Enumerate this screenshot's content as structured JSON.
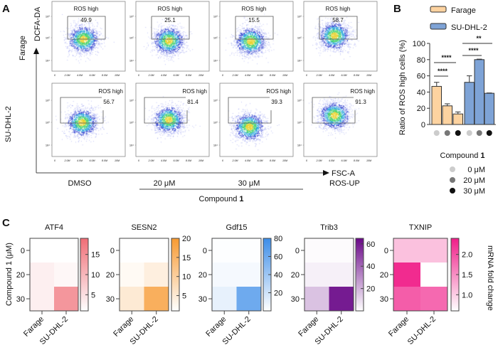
{
  "panel_labels": {
    "a": "A",
    "b": "B",
    "c": "C"
  },
  "panel_a": {
    "y_axis": "DCFA-DA",
    "x_axis": "FSC-A",
    "x_axis_sub": "ROS-UP",
    "rows": [
      "Farage",
      "SU-DHL-2"
    ],
    "columns": [
      "DMSO",
      "20 μM",
      "30 μM",
      ""
    ],
    "group_label": "Compound ",
    "group_label_bold": "1",
    "gate_label": "ROS high",
    "y_ticks": [
      "10⁶",
      "10⁵",
      "10⁴"
    ],
    "x_ticks": [
      "0",
      "2.0M",
      "4.0M",
      "6.0M",
      "8.0M",
      "10M"
    ],
    "gate_values": [
      [
        "49.9",
        "25.1",
        "15.5",
        "58.7"
      ],
      [
        "56.7",
        "81.4",
        "39.3",
        "91.3"
      ]
    ]
  },
  "chart_data": [
    {
      "type": "bar",
      "ylabel": "Ratio of ROS high cells (%)",
      "ylim": [
        0,
        100
      ],
      "yticks": [
        0,
        20,
        40,
        60,
        80,
        100
      ],
      "legend_placement": "top",
      "categories": [
        "0 μM",
        "20 μM",
        "30 μM"
      ],
      "series": [
        {
          "name": "Farage",
          "values": [
            47,
            23,
            13
          ],
          "errors": [
            5,
            2.5,
            2.5
          ],
          "color": "#fdd3a0"
        },
        {
          "name": "SU-DHL-2",
          "values": [
            52,
            80,
            38.5
          ],
          "errors": [
            8,
            0.6,
            0.4
          ],
          "color": "#7ea3d6"
        }
      ],
      "significance": [
        {
          "series": "Farage",
          "from": "0 μM",
          "to": "20 μM",
          "label": "****"
        },
        {
          "series": "Farage",
          "from": "0 μM",
          "to": "30 μM",
          "label": "****"
        },
        {
          "series": "SU-DHL-2",
          "from": "0 μM",
          "to": "20 μM",
          "label": "****"
        },
        {
          "series": "SU-DHL-2",
          "from": "0 μM",
          "to": "30 μM",
          "label": "**"
        }
      ],
      "dose_legend": {
        "title": "Compound ",
        "title_bold": "1",
        "items": [
          {
            "label": "0 μM",
            "color": "#cccccc"
          },
          {
            "label": "20 μM",
            "color": "#777777"
          },
          {
            "label": "30 μM",
            "color": "#111111"
          }
        ]
      }
    },
    {
      "type": "heatmap",
      "ylabel": "Compound 1 (μM)",
      "colorbar_label": "mRNA fold change",
      "rows": [
        "0",
        "20",
        "30"
      ],
      "columns": [
        "Farage",
        "SU-DHL-2"
      ],
      "panels": [
        {
          "title": "ATF4",
          "color": "#f06d76",
          "range": [
            1,
            19
          ],
          "ticks": [
            5,
            10,
            15
          ],
          "values": [
            [
              1,
              1
            ],
            [
              3,
              2
            ],
            [
              3,
              14
            ]
          ]
        },
        {
          "title": "SESN2",
          "color": "#f79a32",
          "range": [
            1,
            20
          ],
          "ticks": [
            5,
            10,
            15,
            20
          ],
          "values": [
            [
              1,
              1
            ],
            [
              2,
              4
            ],
            [
              5,
              16
            ]
          ]
        },
        {
          "title": "Gdf15",
          "color": "#3d8de8",
          "range": [
            0,
            80
          ],
          "ticks": [
            20,
            40,
            60,
            80
          ],
          "values": [
            [
              1,
              1
            ],
            [
              4,
              4
            ],
            [
              10,
              60
            ]
          ]
        },
        {
          "title": "Trib3",
          "color": "#6a0888",
          "range": [
            0,
            65
          ],
          "ticks": [
            20,
            40,
            60
          ],
          "values": [
            [
              1,
              1
            ],
            [
              4,
              4
            ],
            [
              16,
              60
            ]
          ]
        },
        {
          "title": "TXNIP",
          "color": "#f01e88",
          "range": [
            0.6,
            2.4
          ],
          "ticks": [
            1.0,
            1.5,
            2.0
          ],
          "tick_labels": [
            "1.0",
            "1.5",
            "2.0"
          ],
          "values": [
            [
              1.1,
              1.1
            ],
            [
              2.3,
              0.6
            ],
            [
              1.9,
              1.8
            ]
          ]
        }
      ]
    }
  ]
}
